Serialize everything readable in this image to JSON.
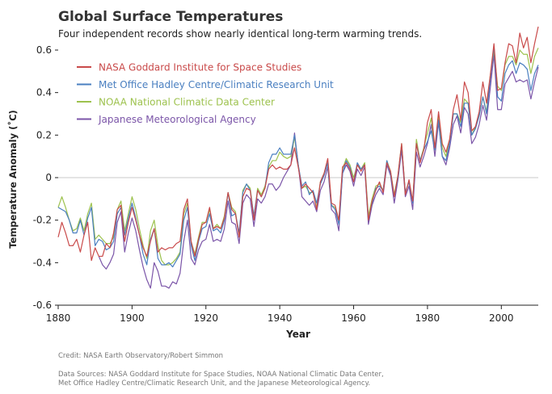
{
  "header": {
    "title": "Global Surface Temperatures",
    "subtitle": "Four independent records show nearly identical long-term warming trends."
  },
  "footer": {
    "credit": "Credit: NASA Earth Observatory/Robert Simmon",
    "sources_line1": "Data Sources: NASA Goddard Institute for Space Studies, NOAA National Climatic Data Center,",
    "sources_line2": "Met Office Hadley Centre/Climatic Research Unit, and the Japanese Meteorological Agency."
  },
  "chart_data": {
    "type": "line",
    "title": "Global Surface Temperatures",
    "subtitle": "Four independent records show nearly identical long-term warming trends.",
    "xlabel": "Year",
    "ylabel": "Temperature Anomaly (˚C)",
    "xlim": [
      1880,
      2010
    ],
    "ylim": [
      -0.6,
      0.65
    ],
    "xticks": [
      1880,
      1900,
      1920,
      1940,
      1960,
      1980,
      2000
    ],
    "xtick_labels": [
      "1880",
      "1900",
      "1920",
      "1940",
      "1960",
      "1980",
      "2000"
    ],
    "yticks": [
      -0.6,
      -0.4,
      -0.2,
      0,
      0.2,
      0.4,
      0.6
    ],
    "ytick_labels": [
      "-0.6",
      "-0.4",
      "-0.2",
      "0",
      "0.2",
      "0.4",
      "0.6"
    ],
    "zero_line": true,
    "grid": false,
    "legend_position": "top-left",
    "x": [
      1880,
      1881,
      1882,
      1883,
      1884,
      1885,
      1886,
      1887,
      1888,
      1889,
      1890,
      1891,
      1892,
      1893,
      1894,
      1895,
      1896,
      1897,
      1898,
      1899,
      1900,
      1901,
      1902,
      1903,
      1904,
      1905,
      1906,
      1907,
      1908,
      1909,
      1910,
      1911,
      1912,
      1913,
      1914,
      1915,
      1916,
      1917,
      1918,
      1919,
      1920,
      1921,
      1922,
      1923,
      1924,
      1925,
      1926,
      1927,
      1928,
      1929,
      1930,
      1931,
      1932,
      1933,
      1934,
      1935,
      1936,
      1937,
      1938,
      1939,
      1940,
      1941,
      1942,
      1943,
      1944,
      1945,
      1946,
      1947,
      1948,
      1949,
      1950,
      1951,
      1952,
      1953,
      1954,
      1955,
      1956,
      1957,
      1958,
      1959,
      1960,
      1961,
      1962,
      1963,
      1964,
      1965,
      1966,
      1967,
      1968,
      1969,
      1970,
      1971,
      1972,
      1973,
      1974,
      1975,
      1976,
      1977,
      1978,
      1979,
      1980,
      1981,
      1982,
      1983,
      1984,
      1985,
      1986,
      1987,
      1988,
      1989,
      1990,
      1991,
      1992,
      1993,
      1994,
      1995,
      1996,
      1997,
      1998,
      1999,
      2000,
      2001,
      2002,
      2003,
      2004,
      2005,
      2006,
      2007,
      2008,
      2009,
      2010
    ],
    "series": [
      {
        "name": "NASA Goddard Institute for Space Studies",
        "color": "#c94a4a",
        "values": [
          -0.28,
          -0.21,
          -0.26,
          -0.32,
          -0.32,
          -0.29,
          -0.35,
          -0.27,
          -0.21,
          -0.39,
          -0.33,
          -0.37,
          -0.37,
          -0.31,
          -0.33,
          -0.26,
          -0.15,
          -0.13,
          -0.3,
          -0.21,
          -0.14,
          -0.2,
          -0.27,
          -0.33,
          -0.37,
          -0.3,
          -0.24,
          -0.35,
          -0.33,
          -0.34,
          -0.33,
          -0.33,
          -0.31,
          -0.3,
          -0.15,
          -0.1,
          -0.3,
          -0.37,
          -0.29,
          -0.22,
          -0.21,
          -0.14,
          -0.24,
          -0.23,
          -0.24,
          -0.19,
          -0.07,
          -0.15,
          -0.17,
          -0.28,
          -0.09,
          -0.05,
          -0.06,
          -0.2,
          -0.06,
          -0.09,
          -0.05,
          0.04,
          0.06,
          0.04,
          0.05,
          0.04,
          0.04,
          0.06,
          0.14,
          0.05,
          -0.05,
          -0.03,
          -0.05,
          -0.07,
          -0.15,
          -0.02,
          0.02,
          0.09,
          -0.12,
          -0.13,
          -0.2,
          0.05,
          0.07,
          0.04,
          -0.02,
          0.06,
          0.03,
          0.06,
          -0.2,
          -0.11,
          -0.06,
          -0.02,
          -0.07,
          0.07,
          0.03,
          -0.09,
          0.01,
          0.16,
          -0.08,
          -0.01,
          -0.11,
          0.16,
          0.07,
          0.13,
          0.26,
          0.32,
          0.14,
          0.31,
          0.16,
          0.12,
          0.18,
          0.32,
          0.39,
          0.27,
          0.45,
          0.4,
          0.22,
          0.24,
          0.31,
          0.45,
          0.35,
          0.48,
          0.63,
          0.41,
          0.42,
          0.54,
          0.63,
          0.62,
          0.54,
          0.68,
          0.61,
          0.66,
          0.54,
          0.63,
          0.71
        ]
      },
      {
        "name": "Met Office Hadley Centre/Climatic Research Unit",
        "color": "#4a7fc0",
        "values": [
          -0.14,
          -0.15,
          -0.16,
          -0.2,
          -0.26,
          -0.26,
          -0.2,
          -0.27,
          -0.19,
          -0.14,
          -0.32,
          -0.29,
          -0.3,
          -0.34,
          -0.33,
          -0.3,
          -0.17,
          -0.14,
          -0.27,
          -0.19,
          -0.12,
          -0.19,
          -0.27,
          -0.36,
          -0.41,
          -0.29,
          -0.24,
          -0.38,
          -0.41,
          -0.41,
          -0.4,
          -0.42,
          -0.39,
          -0.36,
          -0.2,
          -0.14,
          -0.32,
          -0.39,
          -0.3,
          -0.24,
          -0.23,
          -0.17,
          -0.25,
          -0.24,
          -0.26,
          -0.2,
          -0.07,
          -0.18,
          -0.17,
          -0.26,
          -0.07,
          -0.03,
          -0.06,
          -0.18,
          -0.06,
          -0.09,
          -0.05,
          0.07,
          0.11,
          0.11,
          0.14,
          0.11,
          0.11,
          0.11,
          0.2,
          0.06,
          -0.04,
          -0.02,
          -0.08,
          -0.06,
          -0.12,
          -0.03,
          0.01,
          0.07,
          -0.13,
          -0.15,
          -0.22,
          0.02,
          0.08,
          0.05,
          -0.02,
          0.07,
          0.04,
          0.06,
          -0.2,
          -0.12,
          -0.05,
          -0.04,
          -0.06,
          0.08,
          0.02,
          -0.09,
          0.0,
          0.15,
          -0.07,
          -0.02,
          -0.12,
          0.16,
          0.08,
          0.13,
          0.17,
          0.22,
          0.13,
          0.27,
          0.1,
          0.08,
          0.16,
          0.3,
          0.3,
          0.24,
          0.35,
          0.35,
          0.2,
          0.23,
          0.29,
          0.38,
          0.3,
          0.46,
          0.62,
          0.38,
          0.36,
          0.49,
          0.53,
          0.55,
          0.49,
          0.54,
          0.53,
          0.51,
          0.41,
          0.49,
          0.53
        ]
      },
      {
        "name": "NOAA National Climatic Data Center",
        "color": "#9dc24e",
        "values": [
          -0.14,
          -0.09,
          -0.14,
          -0.2,
          -0.25,
          -0.24,
          -0.19,
          -0.25,
          -0.17,
          -0.12,
          -0.29,
          -0.27,
          -0.29,
          -0.31,
          -0.31,
          -0.28,
          -0.15,
          -0.11,
          -0.25,
          -0.17,
          -0.09,
          -0.15,
          -0.24,
          -0.32,
          -0.38,
          -0.25,
          -0.2,
          -0.32,
          -0.39,
          -0.41,
          -0.41,
          -0.4,
          -0.38,
          -0.35,
          -0.17,
          -0.12,
          -0.3,
          -0.36,
          -0.28,
          -0.21,
          -0.21,
          -0.15,
          -0.24,
          -0.22,
          -0.24,
          -0.18,
          -0.07,
          -0.14,
          -0.16,
          -0.28,
          -0.06,
          -0.03,
          -0.05,
          -0.19,
          -0.05,
          -0.08,
          -0.04,
          0.05,
          0.08,
          0.08,
          0.12,
          0.1,
          0.09,
          0.1,
          0.19,
          0.06,
          -0.05,
          -0.04,
          -0.07,
          -0.07,
          -0.14,
          -0.02,
          0.02,
          0.07,
          -0.13,
          -0.14,
          -0.2,
          0.04,
          0.09,
          0.06,
          0.0,
          0.06,
          0.04,
          0.07,
          -0.18,
          -0.1,
          -0.04,
          -0.03,
          -0.06,
          0.08,
          0.03,
          -0.08,
          0.01,
          0.16,
          -0.07,
          -0.02,
          -0.11,
          0.18,
          0.08,
          0.14,
          0.21,
          0.28,
          0.13,
          0.29,
          0.14,
          0.1,
          0.18,
          0.3,
          0.3,
          0.26,
          0.37,
          0.35,
          0.2,
          0.24,
          0.29,
          0.38,
          0.31,
          0.48,
          0.6,
          0.43,
          0.41,
          0.53,
          0.57,
          0.57,
          0.53,
          0.6,
          0.58,
          0.58,
          0.49,
          0.57,
          0.61
        ]
      },
      {
        "name": "Japanese Meteorological Agency",
        "color": "#7b55a8",
        "values": [
          null,
          null,
          null,
          null,
          null,
          null,
          null,
          null,
          null,
          null,
          null,
          -0.37,
          -0.41,
          -0.43,
          -0.4,
          -0.36,
          -0.21,
          -0.16,
          -0.35,
          -0.26,
          -0.19,
          -0.25,
          -0.34,
          -0.42,
          -0.48,
          -0.52,
          -0.4,
          -0.44,
          -0.51,
          -0.51,
          -0.52,
          -0.49,
          -0.5,
          -0.45,
          -0.3,
          -0.2,
          -0.38,
          -0.41,
          -0.34,
          -0.3,
          -0.29,
          -0.22,
          -0.3,
          -0.29,
          -0.3,
          -0.24,
          -0.11,
          -0.21,
          -0.22,
          -0.31,
          -0.12,
          -0.08,
          -0.1,
          -0.23,
          -0.1,
          -0.12,
          -0.09,
          -0.03,
          -0.03,
          -0.06,
          -0.04,
          0.0,
          0.03,
          0.06,
          0.21,
          0.06,
          -0.09,
          -0.11,
          -0.13,
          -0.11,
          -0.16,
          -0.06,
          -0.02,
          0.05,
          -0.15,
          -0.17,
          -0.25,
          0.02,
          0.06,
          0.03,
          -0.04,
          0.04,
          0.01,
          0.05,
          -0.22,
          -0.13,
          -0.08,
          -0.05,
          -0.08,
          0.06,
          0.01,
          -0.12,
          -0.01,
          0.13,
          -0.09,
          -0.04,
          -0.15,
          0.12,
          0.05,
          0.1,
          0.16,
          0.25,
          0.1,
          0.26,
          0.1,
          0.06,
          0.14,
          0.25,
          0.29,
          0.21,
          0.33,
          0.3,
          0.16,
          0.19,
          0.25,
          0.34,
          0.27,
          0.42,
          0.58,
          0.32,
          0.32,
          0.44,
          0.47,
          0.5,
          0.45,
          0.46,
          0.45,
          0.46,
          0.37,
          0.45,
          0.52
        ]
      }
    ]
  }
}
